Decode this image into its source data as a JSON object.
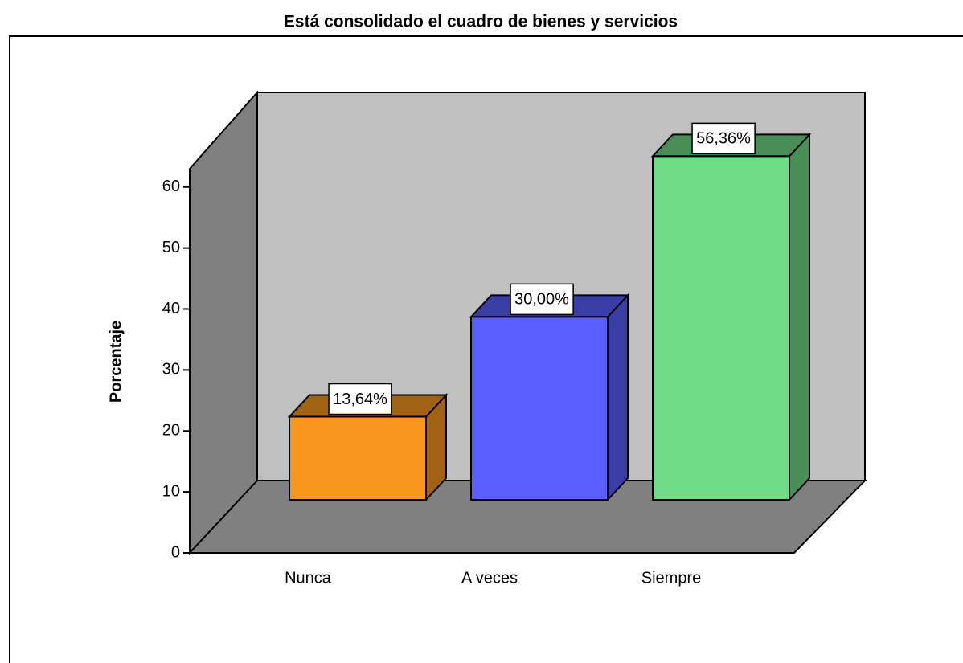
{
  "chart_data": {
    "type": "bar3d",
    "title": "Está consolidado el cuadro de bienes y servicios",
    "ylabel": "Porcentaje",
    "categories": [
      "Nunca",
      "A veces",
      "Siempre"
    ],
    "values": [
      13.64,
      30.0,
      56.36
    ],
    "value_labels": [
      "13,64%",
      "30,00%",
      "56,36%"
    ],
    "colors": [
      "#f7961e",
      "#5a5eff",
      "#6fdb84"
    ],
    "ylim": [
      0,
      63
    ],
    "yticks": [
      0,
      10,
      20,
      30,
      40,
      50,
      60
    ]
  }
}
